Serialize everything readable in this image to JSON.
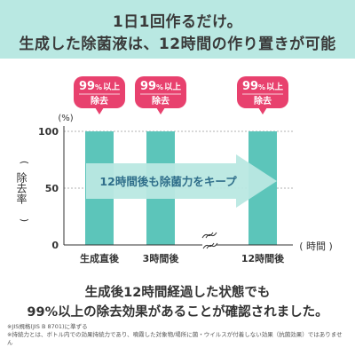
{
  "header": {
    "line1": "1日1回作るだけ。",
    "line2": "生成した除菌液は、12時間の作り置きが可能"
  },
  "chart_data": {
    "type": "bar",
    "categories": [
      "生成直後",
      "3時間後",
      "12時間後"
    ],
    "values": [
      100,
      100,
      100
    ],
    "ylabel": "除去率",
    "yunit": "(%)",
    "xunit": "( 時間 )",
    "yticks": [
      0,
      50,
      100
    ],
    "ylim": [
      0,
      100
    ],
    "bar_color": "#5cc5ba",
    "badges": [
      {
        "main": "99",
        "pct": "%",
        "suffix": "以上",
        "sub": "除去"
      },
      {
        "main": "99",
        "pct": "%",
        "suffix": "以上",
        "sub": "除去"
      },
      {
        "main": "99",
        "pct": "%",
        "suffix": "以上",
        "sub": "除去"
      }
    ],
    "badge_color": "#e8416e",
    "arrow_text": "12時間後も除菌力をキープ",
    "arrow_color": "#b9e8e2",
    "break_mark": "≈"
  },
  "summary": {
    "line1": "生成後12時間経過した状態でも",
    "line2": "99%以上の除去効果があることが確認されました。"
  },
  "footnotes": {
    "note1": "※JIS規格(JIS B 8701)に準ずる",
    "note2": "※持続力とは、ボトル内での効果持続力であり、噴霧した対象物/場所に菌・ウイルスが付着しない効果（抗菌効果）ではありません"
  }
}
